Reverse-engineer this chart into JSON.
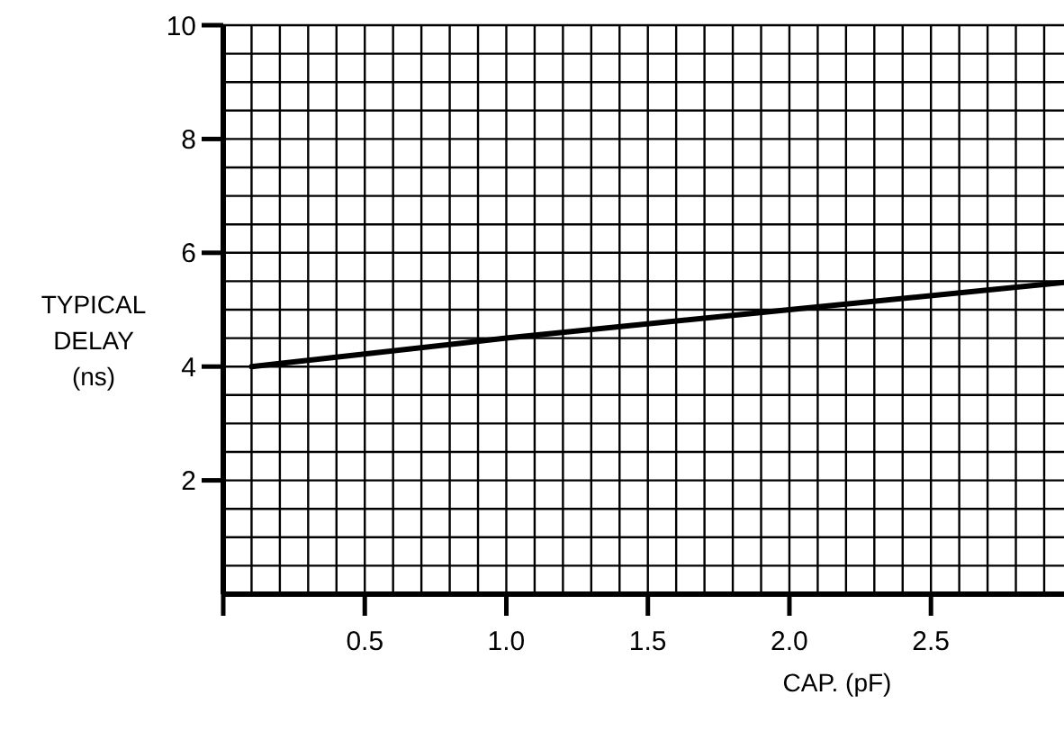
{
  "chart_data": {
    "type": "line",
    "xlabel": "CAP. (pF)",
    "ylabel": "TYPICAL DELAY (ns)",
    "xlim": [
      0,
      2.97
    ],
    "ylim": [
      0,
      10
    ],
    "xticks": [
      {
        "value": 0,
        "label": null
      },
      0.5,
      {
        "value": 1,
        "label": "1.0"
      },
      1.5,
      {
        "value": 2,
        "label": "2.0"
      },
      2.5
    ],
    "yticks": [
      2,
      4,
      6,
      8,
      10
    ],
    "grid": true,
    "series": [
      {
        "color": "#000000",
        "x": [
          0.1,
          1.0,
          2.0,
          2.97
        ],
        "values": [
          4.0,
          4.5,
          5.0,
          5.48
        ]
      }
    ]
  }
}
